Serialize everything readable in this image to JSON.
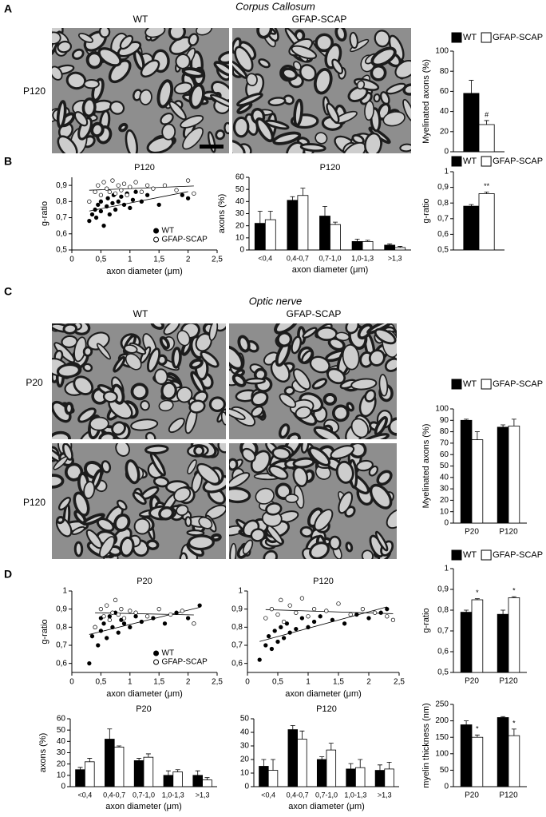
{
  "figure": {
    "panels": [
      "A",
      "B",
      "C",
      "D"
    ],
    "sections": [
      "Corpus Callosum",
      "Optic nerve"
    ],
    "columns": [
      "WT",
      "GFAP-SCAP"
    ],
    "rows": [
      "P120",
      "P20"
    ]
  },
  "chart_data": [
    {
      "type": "bar",
      "ylabel": "Myelinated axons (%)",
      "ylim": [
        0,
        100
      ],
      "yticks": [
        0,
        20,
        40,
        60,
        80,
        100
      ],
      "series": [
        {
          "name": "WT",
          "color": "#000000",
          "values": [
            58
          ],
          "errors": [
            13
          ]
        },
        {
          "name": "GFAP-SCAP",
          "color": "#ffffff",
          "values": [
            27
          ],
          "errors": [
            4
          ],
          "significance": [
            "#"
          ]
        }
      ]
    },
    {
      "type": "scatter",
      "title": "P120",
      "xlabel": "axon diameter (μm)",
      "ylabel": "g-ratio",
      "legend": "lower right",
      "trendline": true,
      "xlim": [
        0,
        2.5
      ],
      "xticks": [
        0,
        {
          "value": 0.5,
          "label": "0,5"
        },
        1,
        {
          "value": 1.5,
          "label": "1,5"
        },
        2,
        {
          "value": 2.5,
          "label": "2,5"
        }
      ],
      "ylim": [
        0.5,
        0.95
      ],
      "yticks": [
        {
          "value": 0.5,
          "label": "0,5"
        },
        {
          "value": 0.6,
          "label": "0,6"
        },
        {
          "value": 0.7,
          "label": "0,7"
        },
        {
          "value": 0.8,
          "label": "0,8"
        },
        {
          "value": 0.9,
          "label": "0,9"
        }
      ],
      "series": [
        {
          "name": "WT",
          "color": "#000000",
          "marker": "filled",
          "x": [
            0.3,
            0.35,
            0.4,
            0.42,
            0.45,
            0.5,
            0.5,
            0.55,
            0.6,
            0.62,
            0.65,
            0.7,
            0.72,
            0.75,
            0.8,
            0.85,
            0.9,
            0.95,
            1.0,
            1.05,
            1.1,
            1.2,
            1.3,
            1.5,
            1.9,
            2.0
          ],
          "values": [
            0.68,
            0.72,
            0.75,
            0.7,
            0.78,
            0.74,
            0.8,
            0.65,
            0.77,
            0.82,
            0.72,
            0.79,
            0.84,
            0.75,
            0.8,
            0.83,
            0.78,
            0.85,
            0.76,
            0.81,
            0.86,
            0.8,
            0.84,
            0.78,
            0.84,
            0.82
          ]
        },
        {
          "name": "GFAP-SCAP",
          "color": "#000000",
          "marker": "open",
          "x": [
            0.3,
            0.4,
            0.45,
            0.5,
            0.55,
            0.6,
            0.65,
            0.7,
            0.75,
            0.8,
            0.85,
            0.9,
            0.95,
            1.0,
            1.1,
            1.2,
            1.3,
            1.4,
            1.6,
            1.8,
            2.0,
            2.1
          ],
          "values": [
            0.8,
            0.86,
            0.9,
            0.84,
            0.92,
            0.88,
            0.86,
            0.93,
            0.85,
            0.9,
            0.87,
            0.91,
            0.84,
            0.89,
            0.92,
            0.86,
            0.9,
            0.88,
            0.9,
            0.87,
            0.93,
            0.85
          ]
        }
      ]
    },
    {
      "type": "bar",
      "title": "P120",
      "ylabel": "axons (%)",
      "xlabel": "axon diameter (μm)",
      "categories": [
        "<0,4",
        "0,4-0,7",
        "0,7-1,0",
        "1,0-1,3",
        ">1,3"
      ],
      "ylim": [
        0,
        60
      ],
      "yticks": [
        0,
        10,
        20,
        30,
        40,
        50,
        60
      ],
      "series": [
        {
          "name": "WT",
          "color": "#000000",
          "values": [
            22,
            41,
            28,
            7,
            4
          ],
          "errors": [
            10,
            3,
            8,
            2,
            1
          ]
        },
        {
          "name": "GFAP-SCAP",
          "color": "#ffffff",
          "values": [
            25,
            45,
            21,
            7,
            2
          ],
          "errors": [
            7,
            6,
            2,
            1,
            1
          ]
        }
      ]
    },
    {
      "type": "bar",
      "ylabel": "g-ratio",
      "ylim": [
        0.5,
        1
      ],
      "yticks": [
        {
          "value": 0.5,
          "label": "0,5"
        },
        {
          "value": 0.6,
          "label": "0,6"
        },
        {
          "value": 0.7,
          "label": "0,7"
        },
        {
          "value": 0.8,
          "label": "0,8"
        },
        {
          "value": 0.9,
          "label": "0,9"
        },
        1
      ],
      "series": [
        {
          "name": "WT",
          "color": "#000000",
          "values": [
            0.78
          ],
          "errors": [
            0.01
          ]
        },
        {
          "name": "GFAP-SCAP",
          "color": "#ffffff",
          "values": [
            0.86
          ],
          "errors": [
            0.01
          ],
          "significance": [
            "**"
          ]
        }
      ]
    },
    {
      "type": "bar",
      "ylabel": "Myelinated axons (%)",
      "categories": [
        "P20",
        "P120"
      ],
      "ylim": [
        0,
        100
      ],
      "yticks": [
        0,
        10,
        20,
        30,
        40,
        50,
        60,
        70,
        80,
        90,
        100
      ],
      "series": [
        {
          "name": "WT",
          "color": "#000000",
          "values": [
            90,
            84
          ],
          "errors": [
            1,
            2
          ]
        },
        {
          "name": "GFAP-SCAP",
          "color": "#ffffff",
          "values": [
            73,
            85
          ],
          "errors": [
            7,
            6
          ]
        }
      ]
    },
    {
      "type": "scatter",
      "title": "P20",
      "xlabel": "axon diameter (μm)",
      "ylabel": "g-ratio",
      "legend": "lower right",
      "trendline": true,
      "xlim": [
        0,
        2.5
      ],
      "xticks": [
        0,
        {
          "value": 0.5,
          "label": "0,5"
        },
        1,
        {
          "value": 1.5,
          "label": "1,5"
        },
        2,
        {
          "value": 2.5,
          "label": "2,5"
        }
      ],
      "ylim": [
        0.55,
        1
      ],
      "yticks": [
        {
          "value": 0.6,
          "label": "0,6"
        },
        {
          "value": 0.7,
          "label": "0,7"
        },
        {
          "value": 0.8,
          "label": "0,8"
        },
        {
          "value": 0.9,
          "label": "0,9"
        },
        1
      ],
      "series": [
        {
          "name": "WT",
          "color": "#000000",
          "marker": "filled",
          "x": [
            0.3,
            0.35,
            0.4,
            0.45,
            0.5,
            0.5,
            0.55,
            0.6,
            0.65,
            0.7,
            0.75,
            0.8,
            0.85,
            0.9,
            1.0,
            1.1,
            1.2,
            1.4,
            1.6,
            1.8,
            2.0,
            2.2
          ],
          "values": [
            0.6,
            0.75,
            0.8,
            0.7,
            0.85,
            0.78,
            0.82,
            0.74,
            0.86,
            0.8,
            0.88,
            0.77,
            0.84,
            0.82,
            0.8,
            0.86,
            0.83,
            0.85,
            0.82,
            0.88,
            0.85,
            0.92
          ]
        },
        {
          "name": "GFAP-SCAP",
          "color": "#000000",
          "marker": "open",
          "x": [
            0.4,
            0.5,
            0.55,
            0.6,
            0.65,
            0.7,
            0.75,
            0.8,
            0.85,
            0.9,
            1.0,
            1.1,
            1.3,
            1.5,
            1.7,
            1.9,
            2.1
          ],
          "values": [
            0.8,
            0.9,
            0.86,
            0.92,
            0.84,
            0.88,
            0.95,
            0.87,
            0.9,
            0.85,
            0.89,
            0.88,
            0.86,
            0.9,
            0.87,
            0.89,
            0.82
          ]
        }
      ]
    },
    {
      "type": "scatter",
      "title": "P120",
      "xlabel": "axon diameter (μm)",
      "trendline": true,
      "xlim": [
        0,
        2.5
      ],
      "xticks": [
        0,
        {
          "value": 0.5,
          "label": "0,5"
        },
        1,
        {
          "value": 1.5,
          "label": "1,5"
        },
        2,
        {
          "value": 2.5,
          "label": "2,5"
        }
      ],
      "ylim": [
        0.55,
        1
      ],
      "yticks": [
        {
          "value": 0.6,
          "label": "0,6"
        },
        {
          "value": 0.7,
          "label": "0,7"
        },
        {
          "value": 0.8,
          "label": "0,8"
        },
        {
          "value": 0.9,
          "label": "0,9"
        },
        1
      ],
      "series": [
        {
          "color": "#000000",
          "marker": "filled",
          "x": [
            0.2,
            0.3,
            0.35,
            0.4,
            0.45,
            0.5,
            0.55,
            0.6,
            0.65,
            0.7,
            0.8,
            0.9,
            1.0,
            1.1,
            1.2,
            1.4,
            1.6,
            1.8,
            2.0,
            2.2,
            2.3
          ],
          "values": [
            0.62,
            0.7,
            0.75,
            0.68,
            0.78,
            0.72,
            0.8,
            0.74,
            0.82,
            0.77,
            0.79,
            0.85,
            0.8,
            0.83,
            0.86,
            0.84,
            0.82,
            0.87,
            0.85,
            0.88,
            0.9
          ]
        },
        {
          "color": "#000000",
          "marker": "open",
          "x": [
            0.3,
            0.4,
            0.5,
            0.55,
            0.6,
            0.7,
            0.8,
            0.9,
            1.0,
            1.1,
            1.3,
            1.5,
            1.7,
            1.9,
            2.1,
            2.3,
            2.4
          ],
          "values": [
            0.85,
            0.9,
            0.87,
            0.95,
            0.83,
            0.92,
            0.88,
            0.96,
            0.86,
            0.9,
            0.89,
            0.93,
            0.87,
            0.9,
            0.88,
            0.86,
            0.84
          ]
        }
      ]
    },
    {
      "type": "bar",
      "ylabel": "g-ratio",
      "categories": [
        "P20",
        "P120"
      ],
      "ylim": [
        0.5,
        1
      ],
      "yticks": [
        {
          "value": 0.5,
          "label": "0,5"
        },
        {
          "value": 0.6,
          "label": "0,6"
        },
        {
          "value": 0.7,
          "label": "0,7"
        },
        {
          "value": 0.8,
          "label": "0,8"
        },
        {
          "value": 0.9,
          "label": "0,9"
        },
        1
      ],
      "series": [
        {
          "name": "WT",
          "color": "#000000",
          "values": [
            0.79,
            0.78
          ],
          "errors": [
            0.01,
            0.02
          ]
        },
        {
          "name": "GFAP-SCAP",
          "color": "#ffffff",
          "values": [
            0.85,
            0.86
          ],
          "errors": [
            0.005,
            0.005
          ],
          "significance": [
            "*",
            "*"
          ]
        }
      ]
    },
    {
      "type": "bar",
      "title": "P20",
      "ylabel": "axons (%)",
      "xlabel": "axon diameter (μm)",
      "categories": [
        "<0,4",
        "0,4-0,7",
        "0,7-1,0",
        "1,0-1,3",
        ">1,3"
      ],
      "ylim": [
        0,
        60
      ],
      "yticks": [
        0,
        10,
        20,
        30,
        40,
        50,
        60
      ],
      "series": [
        {
          "color": "#000000",
          "values": [
            15,
            42,
            23,
            10,
            10
          ],
          "errors": [
            2,
            9,
            2,
            4,
            4
          ]
        },
        {
          "color": "#ffffff",
          "values": [
            22,
            35,
            26,
            13,
            6
          ],
          "errors": [
            3,
            1,
            3,
            2,
            2
          ]
        }
      ]
    },
    {
      "type": "bar",
      "title": "P120",
      "xlabel": "axon diameter (μm)",
      "categories": [
        "<0,4",
        "0,4-0,7",
        "0,7-1,0",
        "1,0-1,3",
        ">1,3"
      ],
      "ylim": [
        0,
        50
      ],
      "yticks": [
        0,
        10,
        20,
        30,
        40,
        50
      ],
      "series": [
        {
          "color": "#000000",
          "values": [
            15,
            42,
            20,
            13,
            12
          ],
          "errors": [
            5,
            3,
            2,
            4,
            4
          ]
        },
        {
          "color": "#ffffff",
          "values": [
            12,
            35,
            27,
            14,
            13
          ],
          "errors": [
            8,
            6,
            5,
            6,
            5
          ]
        }
      ]
    },
    {
      "type": "bar",
      "ylabel": "myelin thickness (nm)",
      "categories": [
        "P20",
        "P120"
      ],
      "ylim": [
        0,
        250
      ],
      "yticks": [
        0,
        50,
        100,
        150,
        200,
        250
      ],
      "series": [
        {
          "color": "#000000",
          "values": [
            188,
            210
          ],
          "errors": [
            12,
            3
          ]
        },
        {
          "color": "#ffffff",
          "values": [
            150,
            155
          ],
          "errors": [
            7,
            20
          ],
          "significance": [
            "*",
            "*"
          ]
        }
      ]
    }
  ]
}
